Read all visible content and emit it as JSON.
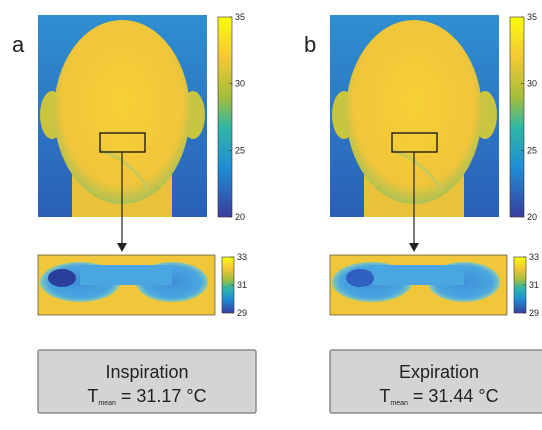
{
  "panels": [
    {
      "label": "a",
      "colorbar_ticks": [
        35,
        30,
        25,
        20
      ],
      "roi_colorbar_ticks": [
        33,
        31,
        29
      ],
      "condition": "Inspiration",
      "temperature": {
        "symbol": "T",
        "subscript": "mean",
        "value_text": "= 31.17 °C"
      }
    },
    {
      "label": "b",
      "colorbar_ticks": [
        35,
        30,
        25,
        20
      ],
      "roi_colorbar_ticks": [
        33,
        31,
        29
      ],
      "condition": "Expiration",
      "temperature": {
        "symbol": "T",
        "subscript": "mean",
        "value_text": "= 31.44 °C"
      }
    }
  ]
}
